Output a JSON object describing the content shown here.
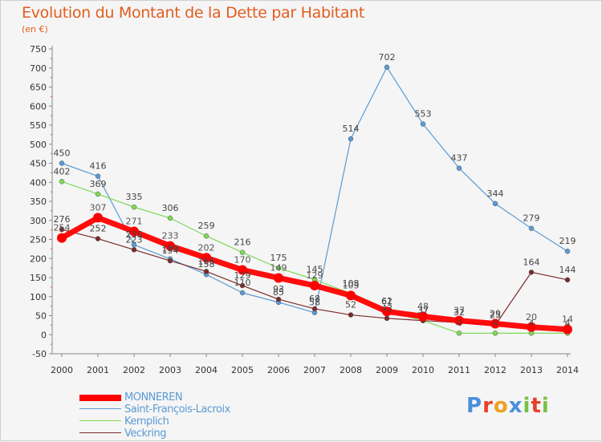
{
  "header": {
    "title": "Evolution du Montant de la Dette par Habitant",
    "subtitle": "(en €)"
  },
  "logo": {
    "text": "Proxiti",
    "letters": [
      {
        "ch": "P",
        "color": "#4a90d9"
      },
      {
        "ch": "r",
        "color": "#e8402a"
      },
      {
        "ch": "o",
        "color": "#f0a020"
      },
      {
        "ch": "x",
        "color": "#4a90d9"
      },
      {
        "ch": "i",
        "color": "#7ac143"
      },
      {
        "ch": "t",
        "color": "#e8402a"
      },
      {
        "ch": "i",
        "color": "#7ac143"
      }
    ]
  },
  "chart_data": {
    "type": "line",
    "x": [
      2000,
      2001,
      2002,
      2003,
      2004,
      2005,
      2006,
      2007,
      2008,
      2009,
      2010,
      2011,
      2012,
      2013,
      2014
    ],
    "ylim": [
      -50,
      750
    ],
    "yticks": [
      -50,
      0,
      50,
      100,
      150,
      200,
      250,
      300,
      350,
      400,
      450,
      500,
      550,
      600,
      650,
      700,
      750
    ],
    "grid": false,
    "legend_position": "bottom-left",
    "series": [
      {
        "name": "MONNEREN",
        "color": "#ff0000",
        "label_color": "#555555",
        "values": [
          254,
          307,
          271,
          233,
          202,
          170,
          149,
          129,
          103,
          61,
          48,
          37,
          29,
          20,
          14
        ]
      },
      {
        "name": "Saint-François-Lacroix",
        "color": "#5a9bd4",
        "label_color": "#444444",
        "values": [
          450,
          416,
          236,
          199,
          158,
          110,
          85,
          58,
          514,
          702,
          553,
          437,
          344,
          279,
          219
        ]
      },
      {
        "name": "Kemplich",
        "color": "#7ed957",
        "label_color": "#444444",
        "values": [
          402,
          369,
          335,
          306,
          259,
          216,
          175,
          145,
          108,
          62,
          37,
          4,
          4,
          4,
          4
        ]
      },
      {
        "name": "Veckring",
        "color": "#7a2a2a",
        "label_color": "#444444",
        "values": [
          276,
          252,
          223,
          194,
          166,
          129,
          93,
          68,
          52,
          43,
          37,
          32,
          25,
          164,
          144
        ]
      }
    ]
  }
}
